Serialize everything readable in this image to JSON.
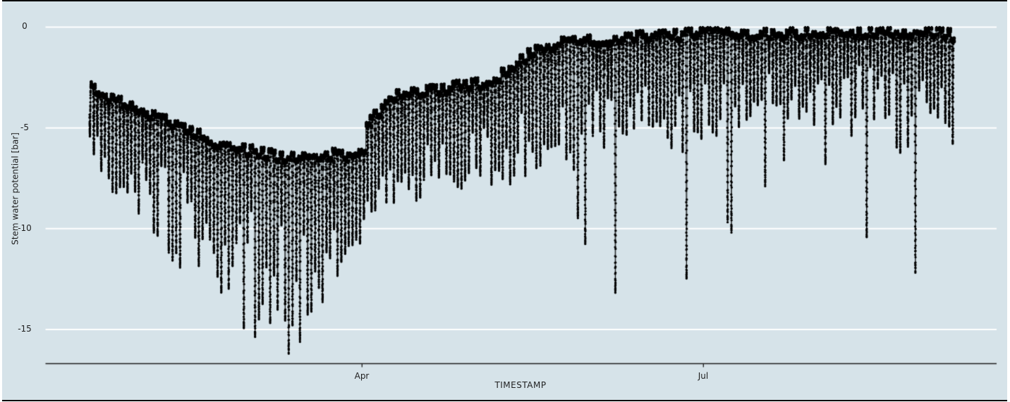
{
  "figure": {
    "background": "#d6e3e9",
    "page_background": "#ffffff",
    "grid_color": "#ffffff",
    "point_color": "#000000",
    "axis_color": "#1c1c1c",
    "text_color": "#1f1f1f"
  },
  "chart_data": {
    "type": "scatter",
    "title": "",
    "xlabel": "TIMESTAMP",
    "ylabel": "Stem water potential [bar]",
    "series_name": "stem water potential",
    "marker": "point",
    "grid": "horizontal-white",
    "legend": "none",
    "x_tick_labels": [
      "Apr",
      "Jul"
    ],
    "x_tick_days": [
      73,
      164
    ],
    "y_tick_labels": [
      "0",
      "-5",
      "-10",
      "-15"
    ],
    "y_ticks": [
      0,
      -5,
      -10,
      -15
    ],
    "ylim": [
      -16.7,
      0.35
    ],
    "x_range_days": [
      0,
      231
    ],
    "samples_per_day": 180,
    "envelope_description": "daily max (night) and daily min (midday) stem water potential read off the plot; day 0 = first datum (~mid-January), Apr 1 = day 73, Jul 1 = day 164",
    "envelope": [
      [
        0,
        -3.0,
        -7.7
      ],
      [
        7,
        -3.6,
        -8.3
      ],
      [
        14,
        -4.2,
        -9.6
      ],
      [
        19,
        -4.6,
        -10.7
      ],
      [
        26,
        -5.2,
        -12.6
      ],
      [
        35,
        -5.8,
        -13.5
      ],
      [
        41,
        -6.1,
        -14.2
      ],
      [
        47,
        -6.3,
        -14.6
      ],
      [
        53,
        -6.5,
        -15.8
      ],
      [
        58,
        -6.4,
        -15.2
      ],
      [
        65,
        -6.3,
        -13.4
      ],
      [
        71,
        -6.3,
        -11.8
      ],
      [
        73,
        -6.2,
        -10.5
      ],
      [
        74,
        -4.8,
        -9.2
      ],
      [
        82,
        -3.4,
        -8.7
      ],
      [
        90,
        -3.2,
        -8.8
      ],
      [
        97,
        -3.0,
        -8.2
      ],
      [
        104,
        -2.8,
        -8.5
      ],
      [
        112,
        -2.2,
        -7.8
      ],
      [
        117,
        -1.3,
        -7.2
      ],
      [
        123,
        -0.9,
        -6.6
      ],
      [
        129,
        -0.7,
        -7.6
      ],
      [
        136,
        -0.6,
        -6.2
      ],
      [
        144,
        -0.5,
        -5.2
      ],
      [
        150,
        -0.4,
        -6.0
      ],
      [
        156,
        -0.4,
        -6.8
      ],
      [
        164,
        -0.3,
        -5.6
      ],
      [
        172,
        -0.3,
        -5.2
      ],
      [
        180,
        -0.3,
        -5.0
      ],
      [
        189,
        -0.3,
        -4.6
      ],
      [
        196,
        -0.25,
        -5.2
      ],
      [
        202,
        -0.25,
        -5.5
      ],
      [
        211,
        -0.2,
        -5.2
      ],
      [
        216,
        -0.2,
        -6.3
      ],
      [
        223,
        -0.2,
        -5.6
      ],
      [
        227,
        -0.3,
        -4.8
      ],
      [
        231,
        -0.5,
        -5.8
      ]
    ],
    "deep_spike_days": [
      [
        41,
        -14.9
      ],
      [
        44,
        -15.3
      ],
      [
        53,
        -16.1
      ],
      [
        56,
        -15.5
      ],
      [
        130,
        -9.4
      ],
      [
        132,
        -10.7
      ],
      [
        140,
        -13.1
      ],
      [
        159,
        -12.4
      ],
      [
        170,
        -9.6
      ],
      [
        171,
        -10.1
      ],
      [
        180,
        -7.8
      ],
      [
        185,
        -6.6
      ],
      [
        196,
        -6.7
      ],
      [
        207,
        -10.4
      ],
      [
        220,
        -12.1
      ],
      [
        230,
        -5.8
      ]
    ]
  }
}
